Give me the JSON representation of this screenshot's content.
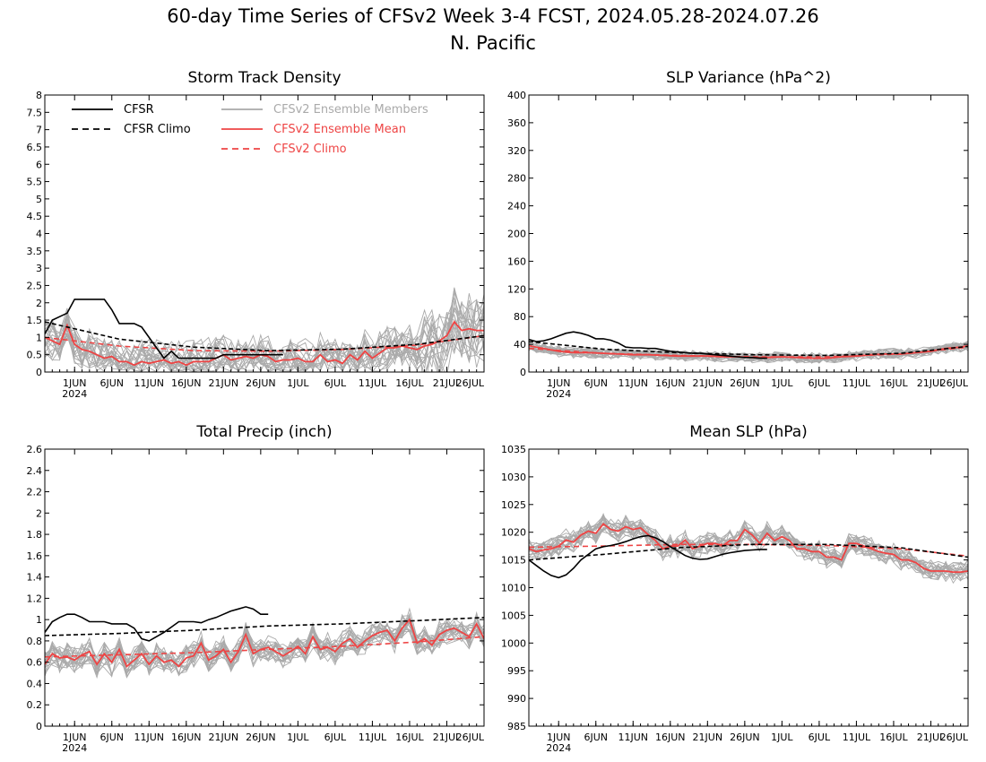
{
  "title": "60-day Time Series of CFSv2 Week 3-4 FCST, 2024.05.28-2024.07.26",
  "subtitle": "N. Pacific",
  "colors": {
    "cfsr": "#000000",
    "ensemble_member": "#aaaaaa",
    "ensemble_mean": "#ee4444",
    "axis": "#000000"
  },
  "legend": {
    "placement": "top-left of first panel",
    "entries": [
      {
        "label": "CFSR",
        "color": "#000000",
        "style": "solid"
      },
      {
        "label": "CFSR Climo",
        "color": "#000000",
        "style": "dashed"
      },
      {
        "label": "CFSv2 Ensemble Members",
        "color": "#aaaaaa",
        "style": "solid"
      },
      {
        "label": "CFSv2 Ensemble Mean",
        "color": "#ee4444",
        "style": "solid"
      },
      {
        "label": "CFSv2 Climo",
        "color": "#ee4444",
        "style": "dashed"
      }
    ]
  },
  "chart_data": [
    {
      "type": "line",
      "title": "Storm Track Density",
      "x_range": [
        0,
        59
      ],
      "ylim": [
        0,
        8
      ],
      "yticks": [
        "0",
        "0.5",
        "1",
        "1.5",
        "2",
        "2.5",
        "3",
        "3.5",
        "4",
        "4.5",
        "5",
        "5.5",
        "6",
        "6.5",
        "7",
        "7.5",
        "8"
      ],
      "xticks": [
        {
          "day": 4,
          "label": "1JUN",
          "sub": "2024"
        },
        {
          "day": 9,
          "label": "6JUN"
        },
        {
          "day": 14,
          "label": "11JUN"
        },
        {
          "day": 19,
          "label": "16JUN"
        },
        {
          "day": 24,
          "label": "21JUN"
        },
        {
          "day": 29,
          "label": "26JUN"
        },
        {
          "day": 34,
          "label": "1JUL"
        },
        {
          "day": 39,
          "label": "6JUL"
        },
        {
          "day": 44,
          "label": "11JUL"
        },
        {
          "day": 49,
          "label": "16JUL"
        },
        {
          "day": 54,
          "label": "21JUL"
        },
        {
          "day": 59,
          "label": "26JUL"
        }
      ],
      "cfsr": {
        "x": [
          0,
          1,
          2,
          3,
          4,
          5,
          6,
          7,
          8,
          9,
          10,
          11,
          12,
          13,
          14,
          15,
          16,
          17,
          18,
          19,
          20,
          21,
          22,
          23,
          24,
          25,
          26,
          27,
          28,
          29,
          30,
          31,
          32
        ],
        "y": [
          1.1,
          1.5,
          1.6,
          1.7,
          2.1,
          2.1,
          2.1,
          2.1,
          2.1,
          1.8,
          1.4,
          1.4,
          1.4,
          1.3,
          1.0,
          0.7,
          0.4,
          0.6,
          0.4,
          0.4,
          0.4,
          0.4,
          0.4,
          0.4,
          0.5,
          0.5,
          0.5,
          0.5,
          0.5,
          0.5,
          0.5,
          0.5,
          0.5
        ]
      },
      "cfsr_climo": {
        "x": [
          0,
          10,
          20,
          30,
          40,
          50,
          59
        ],
        "y": [
          1.45,
          0.95,
          0.72,
          0.62,
          0.66,
          0.8,
          1.05
        ]
      },
      "ens_mean": {
        "x": [
          0,
          1,
          2,
          3,
          4,
          5,
          6,
          7,
          8,
          9,
          10,
          11,
          12,
          13,
          14,
          15,
          16,
          17,
          18,
          19,
          20,
          21,
          22,
          23,
          24,
          25,
          26,
          27,
          28,
          29,
          30,
          31,
          32,
          33,
          34,
          35,
          36,
          37,
          38,
          39,
          40,
          41,
          42,
          43,
          44,
          45,
          46,
          47,
          48,
          49,
          50,
          51,
          52,
          53,
          54,
          55,
          56,
          57,
          58,
          59
        ],
        "y": [
          1.0,
          0.9,
          0.8,
          1.35,
          0.8,
          0.65,
          0.6,
          0.5,
          0.4,
          0.45,
          0.3,
          0.3,
          0.2,
          0.3,
          0.25,
          0.3,
          0.35,
          0.25,
          0.3,
          0.2,
          0.3,
          0.3,
          0.3,
          0.4,
          0.5,
          0.35,
          0.4,
          0.45,
          0.4,
          0.5,
          0.45,
          0.3,
          0.35,
          0.35,
          0.4,
          0.3,
          0.3,
          0.5,
          0.3,
          0.35,
          0.25,
          0.5,
          0.35,
          0.6,
          0.4,
          0.55,
          0.7,
          0.7,
          0.75,
          0.7,
          0.65,
          0.75,
          0.8,
          0.9,
          1.05,
          1.45,
          1.2,
          1.25,
          1.2,
          1.2
        ]
      },
      "ens_climo": {
        "x": [
          0,
          10,
          20,
          30,
          40,
          50,
          59
        ],
        "y": [
          1.0,
          0.75,
          0.62,
          0.6,
          0.65,
          0.78,
          1.05
        ]
      }
    },
    {
      "type": "line",
      "title": "SLP Variance (hPa^2)",
      "x_range": [
        0,
        59
      ],
      "ylim": [
        0,
        400
      ],
      "yticks": [
        "0",
        "40",
        "80",
        "120",
        "160",
        "200",
        "240",
        "280",
        "320",
        "360",
        "400"
      ],
      "xticks": [
        {
          "day": 4,
          "label": "1JUN",
          "sub": "2024"
        },
        {
          "day": 9,
          "label": "6JUN"
        },
        {
          "day": 14,
          "label": "11JUN"
        },
        {
          "day": 19,
          "label": "16JUN"
        },
        {
          "day": 24,
          "label": "21JUN"
        },
        {
          "day": 29,
          "label": "26JUN"
        },
        {
          "day": 34,
          "label": "1JUL"
        },
        {
          "day": 39,
          "label": "6JUL"
        },
        {
          "day": 44,
          "label": "11JUL"
        },
        {
          "day": 49,
          "label": "16JUL"
        },
        {
          "day": 54,
          "label": "21JUL"
        },
        {
          "day": 59,
          "label": "26JUL"
        }
      ],
      "cfsr": {
        "x": [
          0,
          1,
          2,
          3,
          4,
          5,
          6,
          7,
          8,
          9,
          10,
          11,
          12,
          13,
          14,
          15,
          16,
          17,
          18,
          19,
          20,
          21,
          22,
          23,
          24,
          25,
          26,
          27,
          28,
          29,
          30,
          31,
          32
        ],
        "y": [
          47,
          44,
          45,
          48,
          52,
          56,
          58,
          56,
          53,
          48,
          48,
          46,
          42,
          36,
          35,
          35,
          34,
          34,
          32,
          30,
          29,
          28,
          27,
          27,
          26,
          25,
          24,
          23,
          22,
          21,
          21,
          20,
          20
        ]
      },
      "cfsr_climo": {
        "x": [
          0,
          10,
          20,
          30,
          40,
          50,
          59
        ],
        "y": [
          44,
          33,
          28,
          25,
          24,
          27,
          37
        ]
      },
      "ens_mean": {
        "x": [
          0,
          2,
          4,
          6,
          8,
          10,
          12,
          14,
          16,
          18,
          20,
          22,
          24,
          26,
          28,
          30,
          32,
          34,
          36,
          38,
          40,
          42,
          44,
          46,
          48,
          50,
          52,
          54,
          56,
          58,
          59
        ],
        "y": [
          38,
          34,
          30,
          28,
          28,
          27,
          26,
          25,
          25,
          24,
          23,
          23,
          23,
          22,
          22,
          21,
          21,
          22,
          21,
          20,
          20,
          22,
          23,
          25,
          26,
          26,
          28,
          30,
          34,
          36,
          38
        ]
      },
      "ens_climo": {
        "x": [
          0,
          10,
          20,
          30,
          40,
          50,
          59
        ],
        "y": [
          34,
          27,
          24,
          22,
          22,
          26,
          36
        ]
      }
    },
    {
      "type": "line",
      "title": "Total Precip (inch)",
      "x_range": [
        0,
        59
      ],
      "ylim": [
        0,
        2.6
      ],
      "yticks": [
        "0",
        "0.2",
        "0.4",
        "0.6",
        "0.8",
        "1",
        "1.2",
        "1.4",
        "1.6",
        "1.8",
        "2",
        "2.2",
        "2.4",
        "2.6"
      ],
      "xticks": [
        {
          "day": 4,
          "label": "1JUN",
          "sub": "2024"
        },
        {
          "day": 9,
          "label": "6JUN"
        },
        {
          "day": 14,
          "label": "11JUN"
        },
        {
          "day": 19,
          "label": "16JUN"
        },
        {
          "day": 24,
          "label": "21JUN"
        },
        {
          "day": 29,
          "label": "26JUN"
        },
        {
          "day": 34,
          "label": "1JUL"
        },
        {
          "day": 39,
          "label": "6JUL"
        },
        {
          "day": 44,
          "label": "11JUL"
        },
        {
          "day": 49,
          "label": "16JUL"
        },
        {
          "day": 54,
          "label": "21JUL"
        },
        {
          "day": 59,
          "label": "26JUL"
        }
      ],
      "cfsr": {
        "x": [
          0,
          1,
          2,
          3,
          4,
          5,
          6,
          7,
          8,
          9,
          10,
          11,
          12,
          13,
          14,
          15,
          16,
          17,
          18,
          19,
          20,
          21,
          22,
          23,
          24,
          25,
          26,
          27,
          28,
          29,
          30
        ],
        "y": [
          0.88,
          0.98,
          1.02,
          1.05,
          1.05,
          1.02,
          0.98,
          0.98,
          0.98,
          0.96,
          0.96,
          0.96,
          0.92,
          0.82,
          0.8,
          0.84,
          0.88,
          0.93,
          0.98,
          0.98,
          0.98,
          0.97,
          1.0,
          1.02,
          1.05,
          1.08,
          1.1,
          1.12,
          1.1,
          1.05,
          1.05
        ]
      },
      "cfsr_climo": {
        "x": [
          0,
          10,
          20,
          30,
          40,
          50,
          59
        ],
        "y": [
          0.85,
          0.87,
          0.9,
          0.94,
          0.96,
          0.99,
          1.02
        ]
      },
      "ens_mean": {
        "x": [
          0,
          1,
          2,
          3,
          4,
          5,
          6,
          7,
          8,
          9,
          10,
          11,
          12,
          13,
          14,
          15,
          16,
          17,
          18,
          19,
          20,
          21,
          22,
          23,
          24,
          25,
          26,
          27,
          28,
          29,
          30,
          31,
          32,
          33,
          34,
          35,
          36,
          37,
          38,
          39,
          40,
          41,
          42,
          43,
          44,
          45,
          46,
          47,
          48,
          49,
          50,
          51,
          52,
          53,
          54,
          55,
          56,
          57,
          58,
          59
        ],
        "y": [
          0.58,
          0.68,
          0.64,
          0.65,
          0.62,
          0.67,
          0.7,
          0.58,
          0.68,
          0.6,
          0.72,
          0.56,
          0.62,
          0.68,
          0.58,
          0.66,
          0.6,
          0.62,
          0.56,
          0.64,
          0.66,
          0.78,
          0.62,
          0.66,
          0.72,
          0.6,
          0.7,
          0.86,
          0.68,
          0.72,
          0.74,
          0.7,
          0.66,
          0.7,
          0.75,
          0.68,
          0.84,
          0.72,
          0.74,
          0.7,
          0.78,
          0.82,
          0.74,
          0.8,
          0.85,
          0.88,
          0.9,
          0.8,
          0.92,
          1.0,
          0.78,
          0.82,
          0.76,
          0.86,
          0.9,
          0.92,
          0.88,
          0.84,
          0.96,
          0.82
        ]
      },
      "ens_climo": {
        "x": [
          0,
          10,
          20,
          30,
          40,
          50,
          59
        ],
        "y": [
          0.65,
          0.67,
          0.69,
          0.72,
          0.75,
          0.79,
          0.84
        ]
      }
    },
    {
      "type": "line",
      "title": "Mean SLP (hPa)",
      "x_range": [
        0,
        59
      ],
      "ylim": [
        985,
        1035
      ],
      "yticks": [
        "985",
        "990",
        "995",
        "1000",
        "1005",
        "1010",
        "1015",
        "1020",
        "1025",
        "1030",
        "1035"
      ],
      "xticks": [
        {
          "day": 4,
          "label": "1JUN",
          "sub": "2024"
        },
        {
          "day": 9,
          "label": "6JUN"
        },
        {
          "day": 14,
          "label": "11JUN"
        },
        {
          "day": 19,
          "label": "16JUN"
        },
        {
          "day": 24,
          "label": "21JUN"
        },
        {
          "day": 29,
          "label": "26JUN"
        },
        {
          "day": 34,
          "label": "1JUL"
        },
        {
          "day": 39,
          "label": "6JUL"
        },
        {
          "day": 44,
          "label": "11JUL"
        },
        {
          "day": 49,
          "label": "16JUL"
        },
        {
          "day": 54,
          "label": "21JUL"
        },
        {
          "day": 59,
          "label": "26JUL"
        }
      ],
      "cfsr": {
        "x": [
          0,
          1,
          2,
          3,
          4,
          5,
          6,
          7,
          8,
          9,
          10,
          11,
          12,
          13,
          14,
          15,
          16,
          17,
          18,
          19,
          20,
          21,
          22,
          23,
          24,
          25,
          26,
          27,
          28,
          29,
          30,
          31,
          32
        ],
        "y": [
          1015,
          1014,
          1013,
          1012.2,
          1011.8,
          1012.3,
          1013.5,
          1015,
          1016,
          1017,
          1017.4,
          1017.6,
          1017.9,
          1018.3,
          1018.8,
          1019.2,
          1019.4,
          1019.0,
          1018.3,
          1017.4,
          1016.6,
          1015.8,
          1015.3,
          1015.1,
          1015.2,
          1015.6,
          1016.0,
          1016.3,
          1016.5,
          1016.7,
          1016.8,
          1016.9,
          1016.9
        ]
      },
      "cfsr_climo": {
        "x": [
          0,
          10,
          20,
          30,
          40,
          50,
          59
        ],
        "y": [
          1015.0,
          1016.0,
          1017.2,
          1017.8,
          1017.8,
          1017.2,
          1015.5
        ]
      },
      "ens_mean": {
        "x": [
          0,
          1,
          2,
          3,
          4,
          5,
          6,
          7,
          8,
          9,
          10,
          11,
          12,
          13,
          14,
          15,
          16,
          17,
          18,
          19,
          20,
          21,
          22,
          23,
          24,
          25,
          26,
          27,
          28,
          29,
          30,
          31,
          32,
          33,
          34,
          35,
          36,
          37,
          38,
          39,
          40,
          41,
          42,
          43,
          44,
          45,
          46,
          47,
          48,
          49,
          50,
          51,
          52,
          53,
          54,
          55,
          56,
          57,
          58,
          59
        ],
        "y": [
          1017,
          1016.5,
          1016.8,
          1017,
          1017.5,
          1018.6,
          1018.2,
          1019.5,
          1020.2,
          1019.8,
          1021.5,
          1020.5,
          1020.2,
          1021.0,
          1020.5,
          1020.8,
          1019.6,
          1018.5,
          1017.0,
          1017.5,
          1017.5,
          1018.6,
          1017.0,
          1017.5,
          1018.0,
          1018.0,
          1017.5,
          1018.5,
          1018.5,
          1020.5,
          1019.5,
          1018.0,
          1019.8,
          1018.5,
          1019.2,
          1018.5,
          1017.0,
          1017.0,
          1016.5,
          1016.5,
          1015.5,
          1015.5,
          1015.0,
          1018.0,
          1018.0,
          1017.5,
          1017.0,
          1016.5,
          1016.2,
          1016.0,
          1015.0,
          1015.0,
          1014.5,
          1013.5,
          1013.0,
          1013.0,
          1013.0,
          1012.8,
          1012.8,
          1013.0
        ]
      },
      "ens_climo": {
        "x": [
          0,
          10,
          20,
          30,
          40,
          50,
          59
        ],
        "y": [
          1017.3,
          1017.5,
          1017.8,
          1017.8,
          1017.6,
          1017.0,
          1015.7
        ]
      }
    }
  ]
}
